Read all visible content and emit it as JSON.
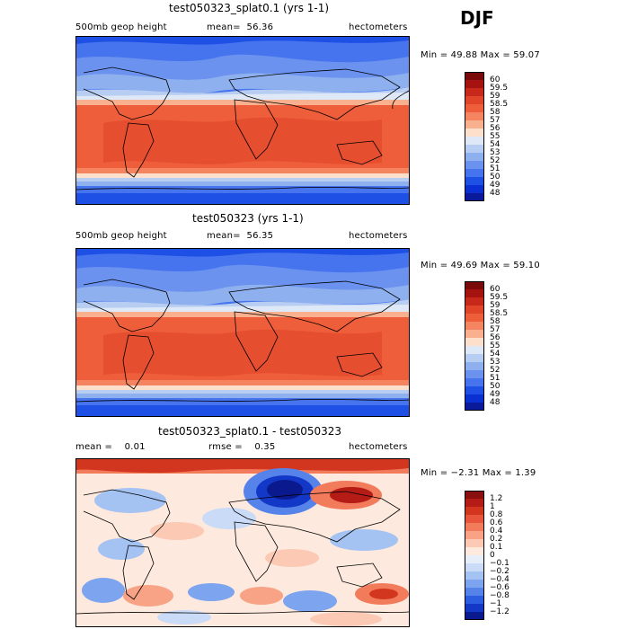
{
  "season_label": "DJF",
  "panels": [
    {
      "title": "test050323_splat0.1 (yrs 1-1)",
      "left_label": "500mb geop height",
      "center_label": "mean=",
      "center_value": "56.36",
      "units": "hectometers",
      "minmax": "Min =  49.88 Max =  59.07"
    },
    {
      "title": "test050323 (yrs 1-1)",
      "left_label": "500mb geop height",
      "center_label": "mean=",
      "center_value": "56.35",
      "units": "hectometers",
      "minmax": "Min =  49.69 Max =  59.10"
    },
    {
      "title": "test050323_splat0.1 - test050323",
      "left_label": "mean =",
      "left_value": "0.01",
      "center_label": "rmse =",
      "center_value": "0.35",
      "units": "hectometers",
      "minmax": "Min =  −2.31 Max =   1.39"
    }
  ],
  "colorbar_abs": {
    "labels": [
      "60",
      "59.5",
      "59",
      "58.5",
      "58",
      "57",
      "56",
      "55",
      "54",
      "53",
      "52",
      "51",
      "50",
      "49",
      "48"
    ],
    "colors": [
      "#7a0a0a",
      "#a5120f",
      "#c8281a",
      "#e0452a",
      "#ef5e3a",
      "#f58561",
      "#f9b08f",
      "#fce0cc",
      "#dfe8f7",
      "#b7cdf2",
      "#8fb0ef",
      "#6a92ee",
      "#4674ee",
      "#1f50e6",
      "#0a2fd2",
      "#0b1a9a"
    ]
  },
  "colorbar_diff": {
    "labels": [
      "1.2",
      "1",
      "0.8",
      "0.6",
      "0.4",
      "0.2",
      "0.1",
      "0",
      "−0.1",
      "−0.2",
      "−0.4",
      "−0.6",
      "−0.8",
      "−1",
      "−1.2"
    ],
    "colors": [
      "#8a0f0f",
      "#b51c16",
      "#d3361f",
      "#e8553a",
      "#f27b5c",
      "#f8a386",
      "#fbc9b4",
      "#fde9dd",
      "#e6eefa",
      "#c9dbf6",
      "#a4c2f2",
      "#7da4ee",
      "#5583ea",
      "#2c5de0",
      "#1338c8",
      "#0a1a8e"
    ]
  }
}
